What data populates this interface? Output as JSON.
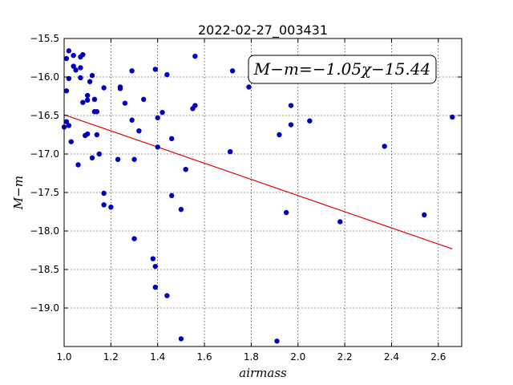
{
  "chart_data": {
    "type": "scatter",
    "title": "2022-02-27_003431",
    "xlabel": "airmass",
    "ylabel": "M−m",
    "xlim": [
      1.0,
      2.7
    ],
    "ylim": [
      -15.5,
      -19.5
    ],
    "y_inverted": true,
    "grid": true,
    "xticks": [
      1.0,
      1.2,
      1.4,
      1.6,
      1.8,
      2.0,
      2.2,
      2.4,
      2.6
    ],
    "xtick_labels": [
      "1.0",
      "1.2",
      "1.4",
      "1.6",
      "1.8",
      "2.0",
      "2.2",
      "2.4",
      "2.6"
    ],
    "yticks": [
      -15.5,
      -16.0,
      -16.5,
      -17.0,
      -17.5,
      -18.0,
      -18.5,
      -19.0
    ],
    "ytick_labels": [
      "−15.5",
      "−16.0",
      "−16.5",
      "−17.0",
      "−17.5",
      "−18.0",
      "−18.5",
      "−19.0"
    ],
    "annotation": "M−m=−1.05χ−15.44",
    "marker_color": "#0000bf",
    "fit_color": "#e00000",
    "fit": {
      "slope": -1.05,
      "intercept": -15.44,
      "x_range": [
        1.0,
        2.66
      ]
    },
    "series": [
      {
        "points": [
          [
            1.0,
            -16.65
          ],
          [
            1.01,
            -16.58
          ],
          [
            1.01,
            -16.18
          ],
          [
            1.01,
            -15.76
          ],
          [
            1.02,
            -15.66
          ],
          [
            1.02,
            -16.02
          ],
          [
            1.02,
            -16.63
          ],
          [
            1.03,
            -16.84
          ],
          [
            1.04,
            -15.86
          ],
          [
            1.04,
            -15.72
          ],
          [
            1.05,
            -15.91
          ],
          [
            1.06,
            -17.14
          ],
          [
            1.07,
            -15.74
          ],
          [
            1.07,
            -15.88
          ],
          [
            1.08,
            -15.71
          ],
          [
            1.07,
            -16.01
          ],
          [
            1.08,
            -16.33
          ],
          [
            1.09,
            -16.76
          ],
          [
            1.1,
            -16.24
          ],
          [
            1.1,
            -16.3
          ],
          [
            1.1,
            -16.74
          ],
          [
            1.11,
            -16.06
          ],
          [
            1.12,
            -15.98
          ],
          [
            1.12,
            -17.05
          ],
          [
            1.13,
            -16.45
          ],
          [
            1.13,
            -16.29
          ],
          [
            1.14,
            -16.75
          ],
          [
            1.14,
            -16.45
          ],
          [
            1.15,
            -17.0
          ],
          [
            1.17,
            -16.14
          ],
          [
            1.17,
            -17.51
          ],
          [
            1.17,
            -17.66
          ],
          [
            1.2,
            -17.69
          ],
          [
            1.23,
            -17.07
          ],
          [
            1.24,
            -16.15
          ],
          [
            1.24,
            -16.13
          ],
          [
            1.26,
            -16.34
          ],
          [
            1.29,
            -15.92
          ],
          [
            1.29,
            -16.56
          ],
          [
            1.3,
            -17.07
          ],
          [
            1.3,
            -18.1
          ],
          [
            1.32,
            -16.7
          ],
          [
            1.34,
            -16.29
          ],
          [
            1.38,
            -18.36
          ],
          [
            1.39,
            -18.46
          ],
          [
            1.39,
            -18.73
          ],
          [
            1.39,
            -15.9
          ],
          [
            1.4,
            -16.53
          ],
          [
            1.4,
            -16.91
          ],
          [
            1.42,
            -16.46
          ],
          [
            1.44,
            -18.84
          ],
          [
            1.44,
            -15.97
          ],
          [
            1.46,
            -17.54
          ],
          [
            1.46,
            -16.8
          ],
          [
            1.5,
            -17.72
          ],
          [
            1.5,
            -19.4
          ],
          [
            1.52,
            -17.2
          ],
          [
            1.55,
            -16.41
          ],
          [
            1.56,
            -16.37
          ],
          [
            1.56,
            -15.73
          ],
          [
            1.71,
            -16.97
          ],
          [
            1.72,
            -15.92
          ],
          [
            1.79,
            -16.13
          ],
          [
            1.91,
            -19.43
          ],
          [
            1.92,
            -16.75
          ],
          [
            1.95,
            -17.76
          ],
          [
            1.97,
            -16.37
          ],
          [
            1.97,
            -16.62
          ],
          [
            2.05,
            -16.57
          ],
          [
            2.18,
            -17.88
          ],
          [
            2.37,
            -16.9
          ],
          [
            2.54,
            -17.79
          ],
          [
            2.66,
            -16.52
          ]
        ]
      }
    ]
  }
}
